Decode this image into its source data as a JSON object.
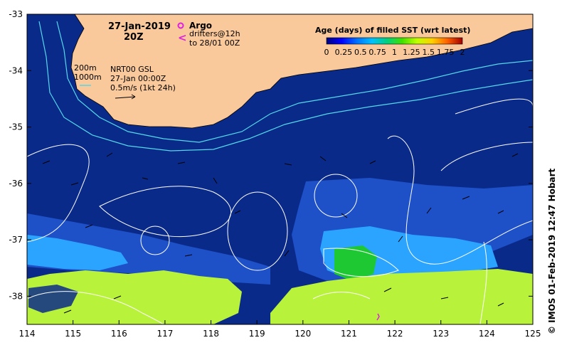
{
  "map": {
    "date_line1": "27-Jan-2019",
    "date_line2": "20Z",
    "argo_label": "Argo",
    "drifters_line1": "drifters@12h",
    "drifters_line2": "to 28/01 00Z",
    "depth_200": "200m",
    "depth_1000": "1000m",
    "product_line1": "NRT00 GSL",
    "product_line2": "27-Jan 00:00Z",
    "product_line3": "0.5m/s (1kt 24h)",
    "credit": "© IMOS 01-Feb-2019 12:47 Hobart"
  },
  "colorbar": {
    "title": "Age (days) of filled SST (wrt latest)",
    "ticks": [
      "0",
      "0.25",
      "0.5",
      "0.75",
      "1",
      "1.25",
      "1.5",
      "1.75",
      "2"
    ],
    "colors": [
      "#000080",
      "#0000ff",
      "#0070ff",
      "#00c0ff",
      "#00d080",
      "#40e000",
      "#c0ff00",
      "#ffd000",
      "#ff6000",
      "#a00000"
    ]
  },
  "axes": {
    "x_ticks": [
      "114",
      "115",
      "116",
      "117",
      "118",
      "119",
      "120",
      "121",
      "122",
      "123",
      "124",
      "125"
    ],
    "y_ticks": [
      "-33",
      "-34",
      "-35",
      "-36",
      "-37",
      "-38"
    ],
    "x_range": [
      114,
      125
    ],
    "y_range": [
      -38.5,
      -33
    ]
  },
  "colors": {
    "ocean": "#0a2a8a",
    "ocean_light": "#1e50c8",
    "land": "#f9c89b",
    "stale_sst": "#b8f23a",
    "mid_age": "#2aa4ff",
    "green_patch": "#1ec832",
    "contour": "#ffffff",
    "isobath": "#55d8e8",
    "argo": "#e020e0",
    "drifter": "#e020e0"
  }
}
